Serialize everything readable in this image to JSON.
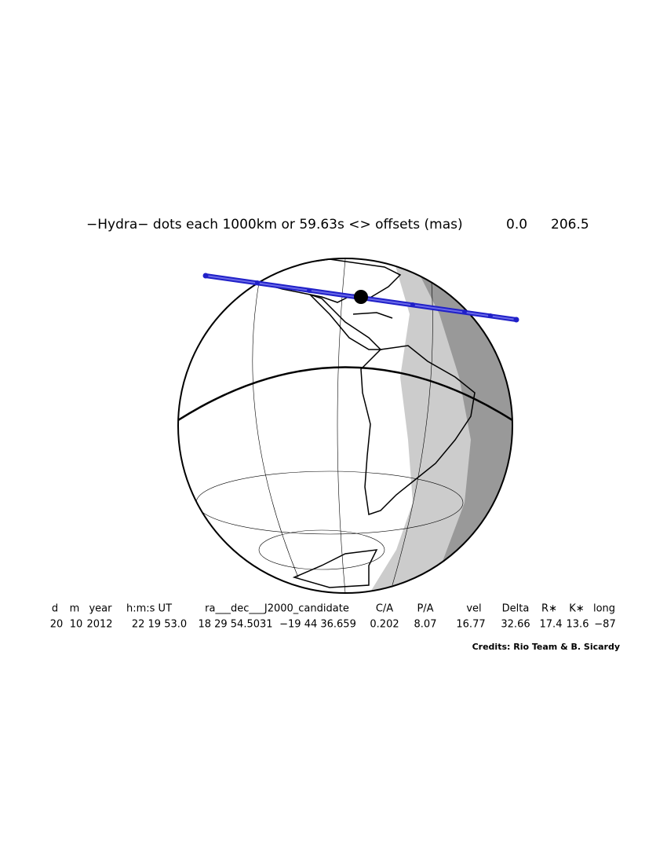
{
  "header": {
    "title": "−Hydra−  dots each 1000km or 59.63s <> offsets (mas)",
    "offsets": [
      "0.0",
      "206.5"
    ]
  },
  "table": {
    "columns": [
      "d",
      "m",
      "year",
      "h:m:s UT",
      "ra___dec___J2000_candidate",
      "C/A",
      "P/A",
      "vel",
      "Delta",
      "R∗",
      "K∗",
      "long"
    ],
    "values": [
      "20",
      "10",
      "2012",
      "22 19 53.0",
      "18 29 54.5031",
      "−19 44 36.659",
      "0.202",
      "8.07",
      "16.77",
      "32.66",
      "17.4",
      "13.6",
      "−87"
    ]
  },
  "credits": "Credits: Rio Team & B. Sicardy"
}
